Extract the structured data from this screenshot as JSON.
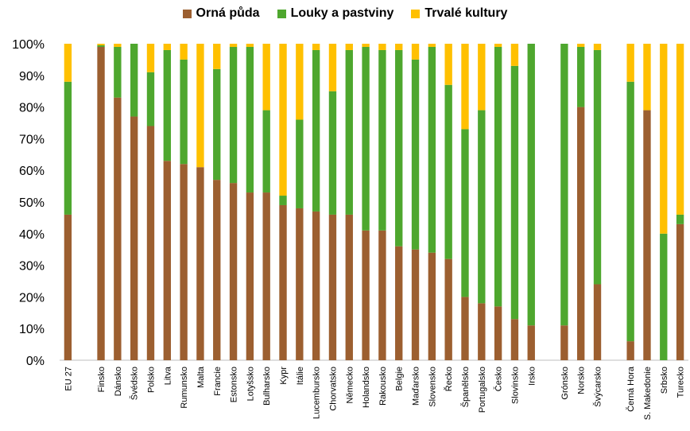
{
  "chart_data": {
    "type": "bar",
    "stacked": true,
    "percent": true,
    "categories": [
      "EU 27",
      "Finsko",
      "Dánsko",
      "Švédsko",
      "Polsko",
      "Litva",
      "Rumunsko",
      "Malta",
      "Francie",
      "Estonsko",
      "Lotyšsko",
      "Bulharsko",
      "Kypr",
      "Itálie",
      "Lucembursko",
      "Chorvatsko",
      "Německo",
      "Holandsko",
      "Rakousko",
      "Belgie",
      "Maďarsko",
      "Slovensko",
      "Řecko",
      "Španělsko",
      "Portugalsko",
      "Česko",
      "Slovinsko",
      "Irsko",
      "Grónsko",
      "Norsko",
      "Švýcarsko",
      "Černá Hora",
      "S. Makedonie",
      "Srbsko",
      "Turecko"
    ],
    "gap_after": [
      0,
      27,
      30
    ],
    "series": [
      {
        "name": "Orná půda",
        "color": "#9C5F30",
        "values": [
          46,
          99,
          83,
          77,
          74,
          63,
          62,
          61,
          57,
          56,
          53,
          53,
          49,
          48,
          47,
          46,
          46,
          41,
          41,
          36,
          35,
          34,
          32,
          20,
          18,
          17,
          13,
          11,
          11,
          80,
          24,
          6,
          79,
          0,
          43
        ]
      },
      {
        "name": "Louky a pastviny",
        "color": "#4EA72E",
        "values": [
          42,
          0.5,
          16,
          23,
          17,
          35,
          33,
          0,
          35,
          43,
          46,
          26,
          3,
          28,
          51,
          39,
          52,
          58,
          57,
          62,
          60,
          65,
          55,
          53,
          61,
          82,
          80,
          89,
          89,
          19,
          74,
          82,
          0,
          40,
          3
        ]
      },
      {
        "name": "Trvalé kultury",
        "color": "#FFC000",
        "values": [
          12,
          0.5,
          1,
          0,
          9,
          2,
          5,
          39,
          8,
          1,
          1,
          21,
          48,
          24,
          2,
          15,
          2,
          1,
          2,
          2,
          5,
          1,
          13,
          27,
          21,
          1,
          7,
          0,
          0,
          1,
          2,
          12,
          21,
          60,
          54
        ]
      }
    ],
    "yticks": [
      "0%",
      "10%",
      "20%",
      "30%",
      "40%",
      "50%",
      "60%",
      "70%",
      "80%",
      "90%",
      "100%"
    ],
    "ylim": [
      0,
      100
    ],
    "legend": "top-center",
    "grid": false
  }
}
